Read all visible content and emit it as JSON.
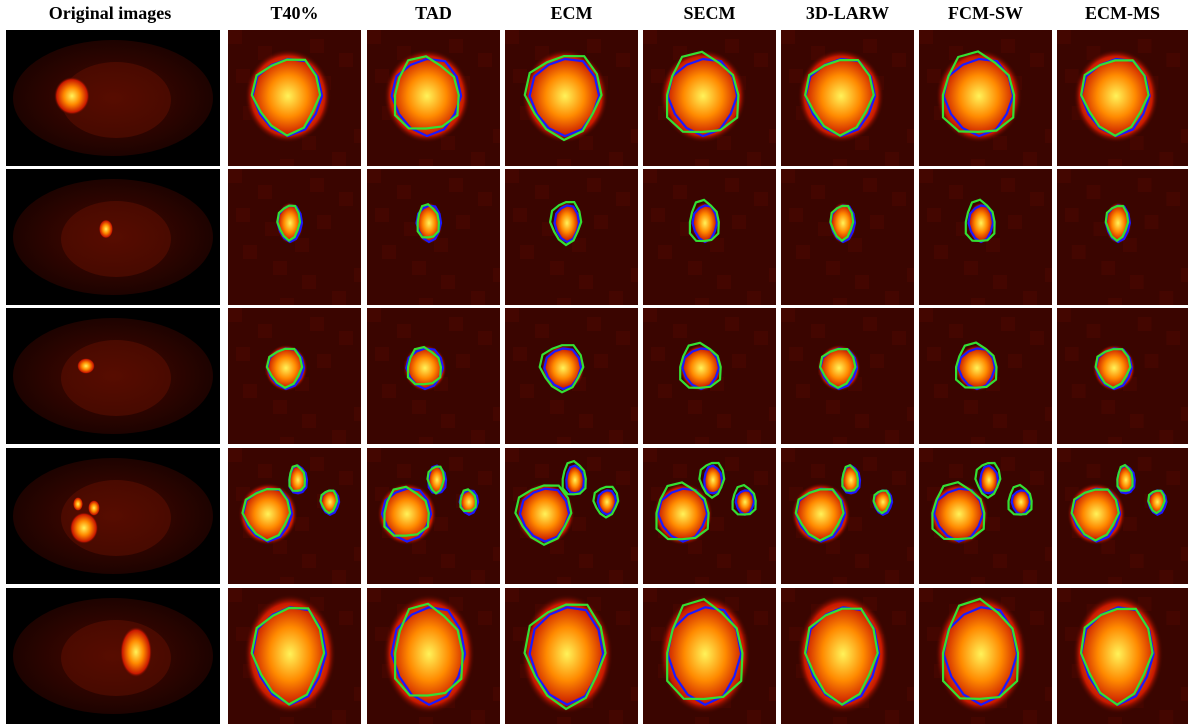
{
  "columns": [
    "Original images",
    "T40%",
    "TAD",
    "ECM",
    "SECM",
    "3D-LARW",
    "FCM-SW",
    "ECM-MS"
  ],
  "colors": {
    "background": "#000000",
    "tissue": "#3a0500",
    "lesion_core": "#fff35a",
    "lesion_mid": "#ff8a00",
    "lesion_edge": "#c81800",
    "ground_truth_contour": "#1a1aff",
    "method_contour": "#33e033"
  }
}
